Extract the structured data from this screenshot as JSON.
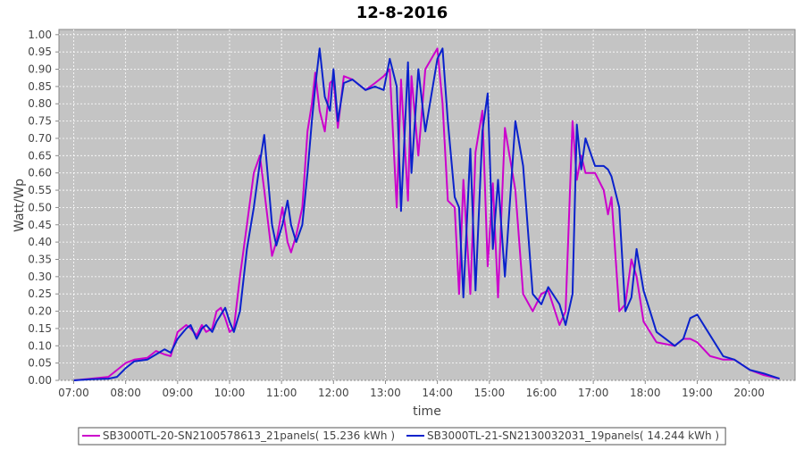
{
  "chart_data": {
    "type": "line",
    "title": "12-8-2016",
    "x_label": "time",
    "y_label": "Watt/Wp",
    "x": [
      "07:00",
      "07:20",
      "07:40",
      "07:50",
      "08:00",
      "08:10",
      "08:25",
      "08:35",
      "08:45",
      "08:52",
      "09:00",
      "09:10",
      "09:15",
      "09:22",
      "09:28",
      "09:33",
      "09:40",
      "09:45",
      "09:50",
      "09:55",
      "10:00",
      "10:05",
      "10:12",
      "10:20",
      "10:28",
      "10:35",
      "10:40",
      "10:49",
      "10:54",
      "11:01",
      "11:07",
      "11:11",
      "11:17",
      "11:24",
      "11:30",
      "11:35",
      "11:39",
      "11:44",
      "11:50",
      "11:56",
      "12:00",
      "12:05",
      "12:12",
      "12:22",
      "12:37",
      "12:48",
      "12:58",
      "13:05",
      "13:13",
      "13:18",
      "13:26",
      "13:30",
      "13:38",
      "13:46",
      "14:00",
      "14:06",
      "14:12",
      "14:20",
      "14:25",
      "14:30",
      "14:38",
      "14:44",
      "14:52",
      "14:58",
      "15:04",
      "15:10",
      "15:18",
      "15:30",
      "15:39",
      "15:50",
      "16:00",
      "16:08",
      "16:21",
      "16:28",
      "16:36",
      "16:41",
      "16:46",
      "16:51",
      "17:02",
      "17:12",
      "17:17",
      "17:21",
      "17:30",
      "17:37",
      "17:44",
      "17:50",
      "17:58",
      "18:13",
      "18:34",
      "18:44",
      "18:52",
      "19:00",
      "19:15",
      "19:30",
      "19:43",
      "20:01",
      "20:17",
      "20:35"
    ],
    "series": [
      {
        "name": "SB3000TL-20-SN2100578613_21panels( 15.236 kWh )",
        "color": "#cc00cc",
        "values": [
          0,
          0.005,
          0.01,
          0.03,
          0.05,
          0.06,
          0.065,
          0.085,
          0.075,
          0.07,
          0.14,
          0.16,
          0.15,
          0.13,
          0.16,
          0.14,
          0.15,
          0.2,
          0.21,
          0.18,
          0.14,
          0.15,
          0.3,
          0.45,
          0.6,
          0.65,
          0.55,
          0.36,
          0.4,
          0.5,
          0.4,
          0.37,
          0.42,
          0.5,
          0.72,
          0.8,
          0.89,
          0.78,
          0.72,
          0.86,
          0.87,
          0.73,
          0.88,
          0.87,
          0.84,
          0.86,
          0.88,
          0.9,
          0.5,
          0.87,
          0.52,
          0.88,
          0.65,
          0.9,
          0.96,
          0.8,
          0.52,
          0.5,
          0.25,
          0.58,
          0.25,
          0.66,
          0.78,
          0.33,
          0.57,
          0.24,
          0.73,
          0.55,
          0.25,
          0.2,
          0.25,
          0.26,
          0.16,
          0.2,
          0.75,
          0.58,
          0.65,
          0.6,
          0.6,
          0.55,
          0.48,
          0.53,
          0.2,
          0.22,
          0.35,
          0.3,
          0.17,
          0.11,
          0.1,
          0.12,
          0.12,
          0.11,
          0.07,
          0.06,
          0.06,
          0.03,
          0.015,
          0.005
        ]
      },
      {
        "name": "SB3000TL-21-SN2130032031_19panels( 14.244 kWh )",
        "color": "#0a22cc",
        "values": [
          0,
          0.003,
          0.005,
          0.01,
          0.035,
          0.055,
          0.06,
          0.075,
          0.09,
          0.08,
          0.12,
          0.15,
          0.16,
          0.12,
          0.15,
          0.16,
          0.14,
          0.17,
          0.19,
          0.21,
          0.17,
          0.14,
          0.2,
          0.38,
          0.5,
          0.63,
          0.71,
          0.45,
          0.39,
          0.45,
          0.52,
          0.45,
          0.4,
          0.45,
          0.6,
          0.75,
          0.85,
          0.96,
          0.82,
          0.78,
          0.9,
          0.75,
          0.86,
          0.87,
          0.84,
          0.85,
          0.84,
          0.93,
          0.85,
          0.49,
          0.92,
          0.6,
          0.9,
          0.72,
          0.93,
          0.96,
          0.75,
          0.53,
          0.5,
          0.24,
          0.67,
          0.26,
          0.72,
          0.83,
          0.38,
          0.58,
          0.3,
          0.75,
          0.62,
          0.25,
          0.22,
          0.27,
          0.22,
          0.16,
          0.25,
          0.74,
          0.61,
          0.7,
          0.62,
          0.62,
          0.61,
          0.59,
          0.5,
          0.2,
          0.24,
          0.38,
          0.26,
          0.14,
          0.1,
          0.12,
          0.18,
          0.19,
          0.13,
          0.07,
          0.06,
          0.03,
          0.02,
          0.005
        ]
      }
    ],
    "xlim": [
      "06:43",
      "20:53"
    ],
    "xticks": [
      "07:00",
      "08:00",
      "09:00",
      "10:00",
      "11:00",
      "12:00",
      "13:00",
      "14:00",
      "15:00",
      "16:00",
      "17:00",
      "18:00",
      "19:00",
      "20:00"
    ],
    "ylim": [
      0,
      1.015
    ],
    "yticks": [
      {
        "value": 0,
        "label": "0.00"
      },
      {
        "value": 0.05,
        "label": "0.05"
      },
      {
        "value": 0.1,
        "label": "0.10"
      },
      {
        "value": 0.15,
        "label": "0.15"
      },
      {
        "value": 0.2,
        "label": "0.20"
      },
      {
        "value": 0.25,
        "label": "0.25"
      },
      {
        "value": 0.3,
        "label": "0.30"
      },
      {
        "value": 0.35,
        "label": "0.35"
      },
      {
        "value": 0.4,
        "label": "0.40"
      },
      {
        "value": 0.45,
        "label": "0.45"
      },
      {
        "value": 0.5,
        "label": "0.50"
      },
      {
        "value": 0.55,
        "label": "0.55"
      },
      {
        "value": 0.6,
        "label": "0.60"
      },
      {
        "value": 0.65,
        "label": "0.65"
      },
      {
        "value": 0.7,
        "label": "0.70"
      },
      {
        "value": 0.75,
        "label": "0.75"
      },
      {
        "value": 0.8,
        "label": "0.80"
      },
      {
        "value": 0.85,
        "label": "0.85"
      },
      {
        "value": 0.9,
        "label": "0.90"
      },
      {
        "value": 0.95,
        "label": "0.95"
      },
      {
        "value": 1,
        "label": "1.00"
      }
    ],
    "grid": true
  }
}
